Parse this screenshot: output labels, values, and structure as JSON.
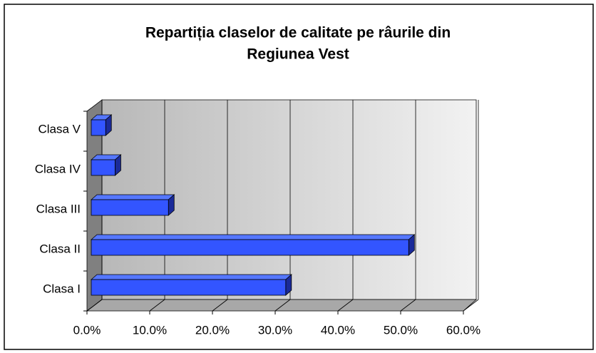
{
  "chart_data": {
    "type": "bar3d-horizontal",
    "title": [
      "Repartiția claselor de calitate pe râurile din",
      "Regiunea Vest"
    ],
    "categories": [
      "Clasa I",
      "Clasa II",
      "Clasa III",
      "Clasa IV",
      "Clasa V"
    ],
    "values": [
      31.0,
      50.6,
      12.3,
      3.8,
      2.3
    ],
    "color": "#3355ff",
    "xlim": [
      0,
      60
    ],
    "xticks": [
      {
        "value": 0,
        "label": "0.0%"
      },
      {
        "value": 10,
        "label": "10.0%"
      },
      {
        "value": 20,
        "label": "20.0%"
      },
      {
        "value": 30,
        "label": "30.0%"
      },
      {
        "value": 40,
        "label": "40.0%"
      },
      {
        "value": 50,
        "label": "50.0%"
      },
      {
        "value": 60,
        "label": "60.0%"
      }
    ],
    "grid": true
  }
}
